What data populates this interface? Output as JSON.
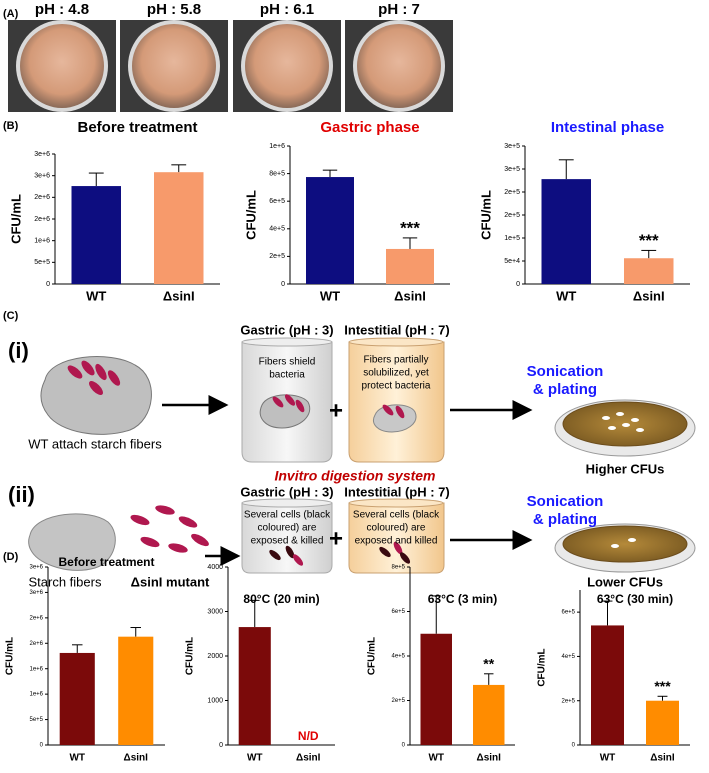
{
  "panel_labels": {
    "a": "(A)",
    "b": "(B)",
    "c": "(C)",
    "d": "(D)"
  },
  "photos": [
    "pH : 4.8",
    "pH : 5.8",
    "pH : 6.1",
    "pH : 7"
  ],
  "diagram": {
    "row_i": "(i)",
    "row_ii": "(ii)",
    "gastric_i": "Gastric (pH : 3)",
    "intestinal_i": "Intestitial (pH : 7)",
    "gastric_ii": "Gastric (pH : 3)",
    "intestinal_ii": "Intestitial (pH : 7)",
    "note_gastric_i": [
      "Fibers shield",
      "bacteria"
    ],
    "note_intestinal_i": [
      "Fibers partially",
      "solubilized, yet",
      "protect bacteria"
    ],
    "note_gastric_ii": [
      "Several cells (black",
      "coloured) are",
      "exposed  & killed"
    ],
    "note_intestinal_ii": [
      "Several cells (black",
      "coloured) are",
      "exposed and killed"
    ],
    "plus_i": "+",
    "plus_ii": "+",
    "sonication_i": [
      "Sonication",
      "& plating"
    ],
    "sonication_ii": [
      "Sonication",
      "& plating"
    ],
    "wt_caption": "WT attach starch fibers",
    "higher": "Higher CFUs",
    "system": "Invitro digestion system",
    "starch": "Starch fibers",
    "mutant": "ΔsinI mutant",
    "lower": "Lower CFUs"
  },
  "chart_data": [
    {
      "type": "bar",
      "title": "Before treatment",
      "title_color": "#000000",
      "y_label": "CFU/mL",
      "categories": [
        "WT",
        "ΔsinI"
      ],
      "values": [
        2260000,
        2580000
      ],
      "errors": [
        300000,
        170000
      ],
      "colors": [
        "#0d0d80",
        "#f79a6b"
      ],
      "significance": [
        null,
        null
      ],
      "ylim": [
        0,
        3000000
      ],
      "yticks": [
        0,
        {
          "value": 500000,
          "label": "5e+5"
        },
        {
          "value": 1000000,
          "label": "1e+6"
        },
        {
          "value": 1500000,
          "label": "2e+6"
        },
        {
          "value": 2000000,
          "label": "2e+6"
        },
        {
          "value": 2500000,
          "label": "3e+6"
        },
        {
          "value": 3000000,
          "label": "3e+6"
        }
      ]
    },
    {
      "type": "bar",
      "title": "Gastric phase",
      "title_color": "#e00000",
      "y_label": "CFU/mL",
      "categories": [
        "WT",
        "ΔsinI"
      ],
      "values": [
        775000,
        254000
      ],
      "errors": [
        50000,
        80000
      ],
      "colors": [
        "#0d0d80",
        "#f79a6b"
      ],
      "significance": [
        null,
        "***"
      ],
      "ylim": [
        0,
        1000000
      ],
      "yticks": [
        0,
        {
          "value": 200000,
          "label": "2e+5"
        },
        {
          "value": 400000,
          "label": "4e+5"
        },
        {
          "value": 600000,
          "label": "6e+5"
        },
        {
          "value": 800000,
          "label": "8e+5"
        },
        {
          "value": 1000000,
          "label": "1e+6"
        }
      ]
    },
    {
      "type": "bar",
      "title": "Intestinal phase",
      "title_color": "#1a1aff",
      "y_label": "CFU/mL",
      "categories": [
        "WT",
        "ΔsinI"
      ],
      "values": [
        228000,
        56000
      ],
      "errors": [
        42000,
        17000
      ],
      "colors": [
        "#0d0d80",
        "#f79a6b"
      ],
      "significance": [
        null,
        "***"
      ],
      "ylim": [
        0,
        300000
      ],
      "yticks": [
        0,
        {
          "value": 50000,
          "label": "5e+4"
        },
        {
          "value": 100000,
          "label": "1e+5"
        },
        {
          "value": 150000,
          "label": "2e+5"
        },
        {
          "value": 200000,
          "label": "2e+5"
        },
        {
          "value": 250000,
          "label": "3e+5"
        },
        {
          "value": 300000,
          "label": "3e+5"
        }
      ]
    },
    {
      "type": "bar",
      "title": "Before treatment",
      "title_color": "#000000",
      "y_label": "CFU/mL",
      "categories": [
        "WT",
        "ΔsinI"
      ],
      "values": [
        1810000,
        2130000
      ],
      "errors": [
        160000,
        180000
      ],
      "colors": [
        "#7b0a0a",
        "#ff8c00"
      ],
      "significance": [
        null,
        null
      ],
      "ylim": [
        0,
        3500000
      ],
      "yticks": [
        0,
        {
          "value": 500000,
          "label": "5e+5"
        },
        {
          "value": 1000000,
          "label": "1e+6"
        },
        {
          "value": 1500000,
          "label": "1e+6"
        },
        {
          "value": 2000000,
          "label": "2e+6"
        },
        {
          "value": 2500000,
          "label": "2e+6"
        },
        {
          "value": 3000000,
          "label": "3e+6"
        },
        {
          "value": 3500000,
          "label": "3e+6"
        }
      ]
    },
    {
      "type": "bar",
      "title": "80°C (20 min)",
      "title_color": "#000000",
      "y_label": "CFU/mL",
      "categories": [
        "WT",
        "ΔsinI"
      ],
      "values": [
        2650,
        null
      ],
      "errors": [
        600,
        null
      ],
      "value_labels": [
        null,
        "N/D"
      ],
      "colors": [
        "#7b0a0a",
        "#ff8c00"
      ],
      "significance": [
        null,
        null
      ],
      "ylim": [
        0,
        4000
      ],
      "yticks": [
        0,
        1000,
        2000,
        3000,
        4000
      ]
    },
    {
      "type": "bar",
      "title": "63°C (3 min)",
      "title_color": "#000000",
      "y_label": "CFU/mL",
      "categories": [
        "WT",
        "ΔsinI"
      ],
      "values": [
        500000,
        270000
      ],
      "errors": [
        170000,
        50000
      ],
      "colors": [
        "#7b0a0a",
        "#ff8c00"
      ],
      "significance": [
        null,
        "**"
      ],
      "ylim": [
        0,
        800000
      ],
      "yticks": [
        0,
        {
          "value": 200000,
          "label": "2e+5"
        },
        {
          "value": 400000,
          "label": "4e+5"
        },
        {
          "value": 600000,
          "label": "6e+5"
        },
        {
          "value": 800000,
          "label": "8e+5"
        }
      ]
    },
    {
      "type": "bar",
      "title": "63°C (30 min)",
      "title_color": "#000000",
      "y_label": "CFU/mL",
      "categories": [
        "WT",
        "ΔsinI"
      ],
      "values": [
        540000,
        200000
      ],
      "errors": [
        110000,
        20000
      ],
      "colors": [
        "#7b0a0a",
        "#ff8c00"
      ],
      "significance": [
        null,
        "***"
      ],
      "ylim": [
        0,
        700000
      ],
      "yticks": [
        0,
        {
          "value": 200000,
          "label": "2e+5"
        },
        {
          "value": 400000,
          "label": "4e+5"
        },
        {
          "value": 600000,
          "label": "6e+5"
        }
      ]
    }
  ]
}
